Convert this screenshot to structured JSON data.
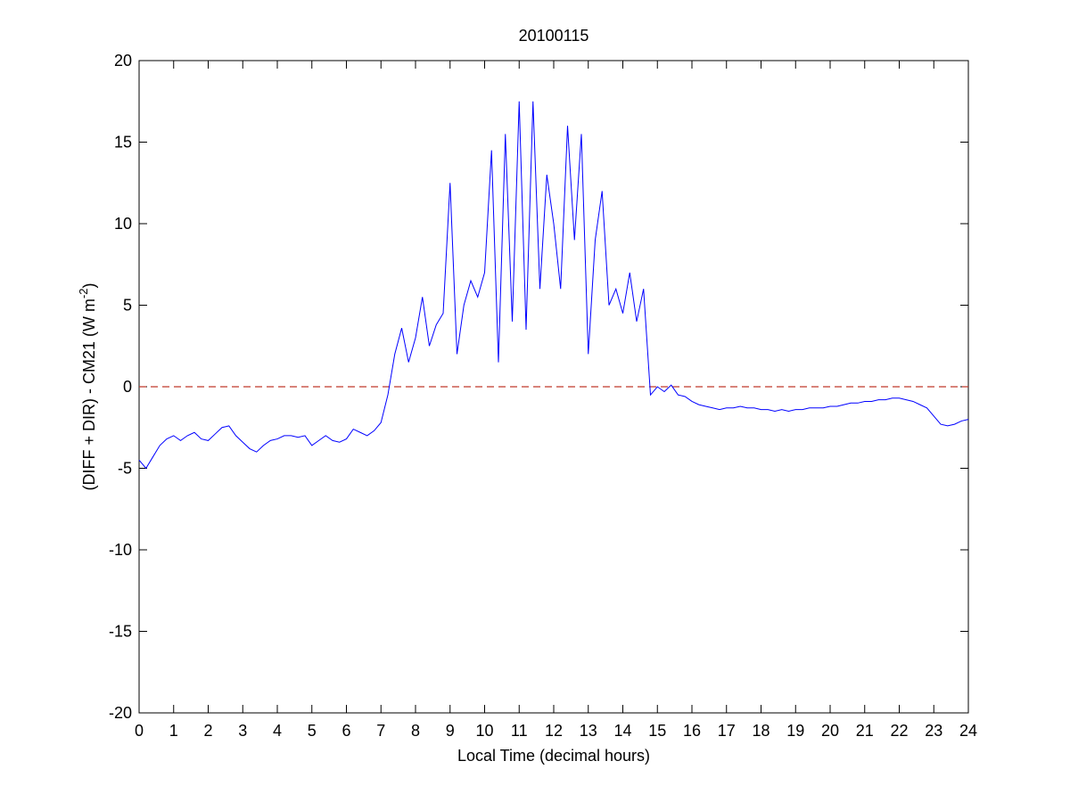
{
  "chart_data": {
    "type": "line",
    "title": "20100115",
    "xlabel": "Local Time (decimal hours)",
    "ylabel": {
      "text": "(DIFF + DIR) - CM21 (W m",
      "sup": "-2",
      "tail": ")"
    },
    "xlim": [
      0,
      24
    ],
    "xticks": [
      0,
      1,
      2,
      3,
      4,
      5,
      6,
      7,
      8,
      9,
      10,
      11,
      12,
      13,
      14,
      15,
      16,
      17,
      18,
      19,
      20,
      21,
      22,
      23,
      24
    ],
    "ylim": [
      -20,
      20
    ],
    "yticks": [
      -20,
      -15,
      -10,
      -5,
      0,
      5,
      10,
      15,
      20
    ],
    "grid": false,
    "reference_line": {
      "value": 0,
      "color": "#c0392b",
      "style": "dashed"
    },
    "x": [
      0,
      0.2,
      0.4,
      0.6,
      0.8,
      1,
      1.2,
      1.4,
      1.6,
      1.8,
      2,
      2.2,
      2.4,
      2.6,
      2.8,
      3,
      3.2,
      3.4,
      3.6,
      3.8,
      4,
      4.2,
      4.4,
      4.6,
      4.8,
      5,
      5.2,
      5.4,
      5.6,
      5.8,
      6,
      6.2,
      6.4,
      6.6,
      6.8,
      7,
      7.2,
      7.4,
      7.6,
      7.8,
      8,
      8.2,
      8.4,
      8.6,
      8.8,
      9,
      9.2,
      9.4,
      9.6,
      9.8,
      10,
      10.2,
      10.4,
      10.6,
      10.8,
      11,
      11.2,
      11.4,
      11.6,
      11.8,
      12,
      12.2,
      12.4,
      12.6,
      12.8,
      13,
      13.2,
      13.4,
      13.6,
      13.8,
      14,
      14.2,
      14.4,
      14.6,
      14.8,
      15,
      15.2,
      15.4,
      15.6,
      15.8,
      16,
      16.2,
      16.4,
      16.6,
      16.8,
      17,
      17.2,
      17.4,
      17.6,
      17.8,
      18,
      18.2,
      18.4,
      18.6,
      18.8,
      19,
      19.2,
      19.4,
      19.6,
      19.8,
      20,
      20.2,
      20.4,
      20.6,
      20.8,
      21,
      21.2,
      21.4,
      21.6,
      21.8,
      22,
      22.2,
      22.4,
      22.6,
      22.8,
      23,
      23.2,
      23.4,
      23.6,
      23.8,
      24
    ],
    "series": [
      {
        "color": "#0000ff",
        "values": [
          -4.5,
          -5.0,
          -4.3,
          -3.6,
          -3.2,
          -3.0,
          -3.3,
          -3.0,
          -2.8,
          -3.2,
          -3.3,
          -2.9,
          -2.5,
          -2.4,
          -3.0,
          -3.4,
          -3.8,
          -4.0,
          -3.6,
          -3.3,
          -3.2,
          -3.0,
          -3.0,
          -3.1,
          -3.0,
          -3.6,
          -3.3,
          -3.0,
          -3.3,
          -3.4,
          -3.2,
          -2.6,
          -2.8,
          -3.0,
          -2.7,
          -2.2,
          -0.5,
          2.0,
          3.6,
          1.5,
          3.0,
          5.5,
          2.5,
          3.8,
          4.5,
          12.5,
          2.0,
          5.0,
          6.5,
          5.5,
          7.0,
          14.5,
          1.5,
          15.5,
          4.0,
          17.5,
          3.5,
          17.5,
          6.0,
          13.0,
          10.0,
          6.0,
          16.0,
          9.0,
          15.5,
          2.0,
          9.0,
          12.0,
          5.0,
          6.0,
          4.5,
          7.0,
          4.0,
          6.0,
          -0.5,
          0.0,
          -0.3,
          0.1,
          -0.5,
          -0.6,
          -0.9,
          -1.1,
          -1.2,
          -1.3,
          -1.4,
          -1.3,
          -1.3,
          -1.2,
          -1.3,
          -1.3,
          -1.4,
          -1.4,
          -1.5,
          -1.4,
          -1.5,
          -1.4,
          -1.4,
          -1.3,
          -1.3,
          -1.3,
          -1.2,
          -1.2,
          -1.1,
          -1.0,
          -1.0,
          -0.9,
          -0.9,
          -0.8,
          -0.8,
          -0.7,
          -0.7,
          -0.8,
          -0.9,
          -1.1,
          -1.3,
          -1.8,
          -2.3,
          -2.4,
          -2.3,
          -2.1,
          -2.0
        ]
      }
    ]
  }
}
